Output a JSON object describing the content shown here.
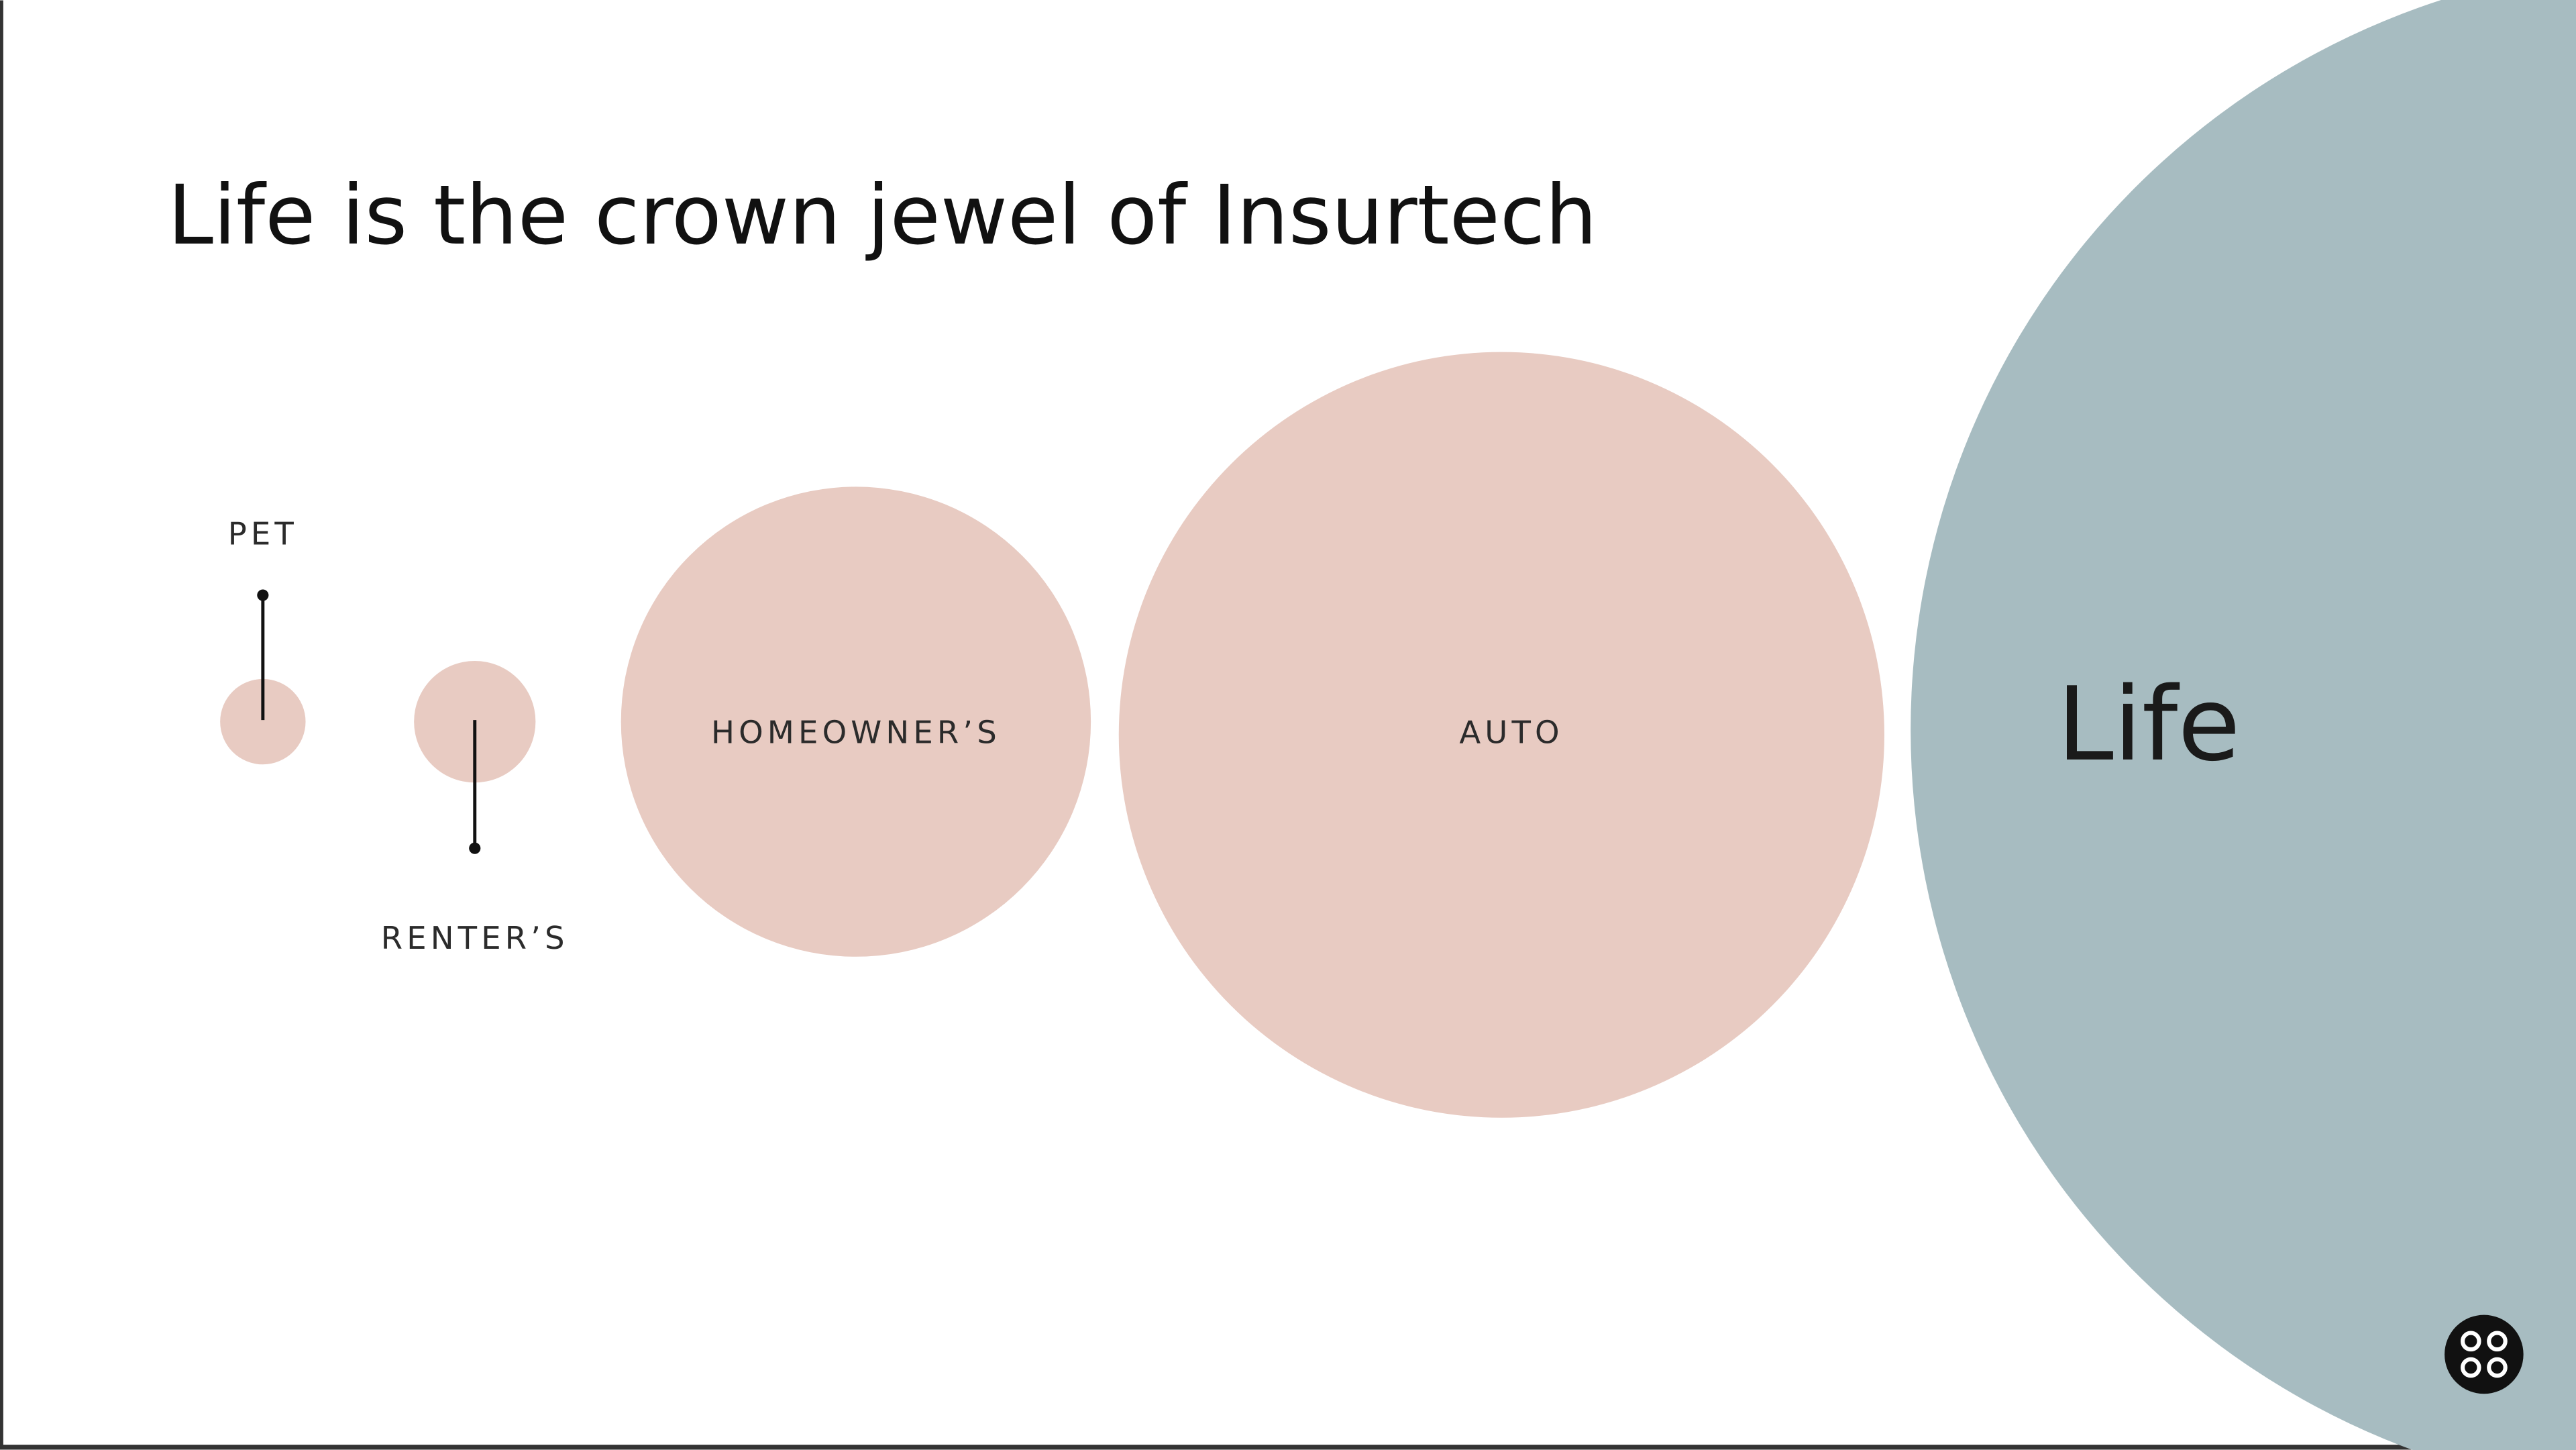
{
  "slide": {
    "title": "Life is the crown jewel of Insurtech",
    "labels": {
      "pet": "PET",
      "renters": "RENTER’S",
      "homeowners": "HOMEOWNER’S",
      "auto": "AUTO",
      "life": "Life"
    }
  }
}
